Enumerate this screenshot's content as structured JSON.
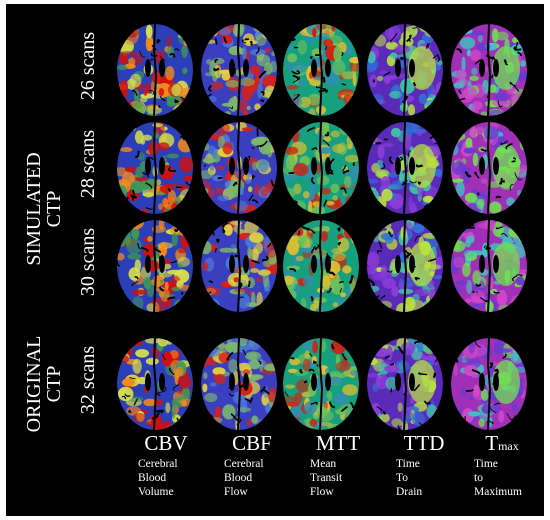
{
  "groups": {
    "simulated": {
      "line1": "SIMULATED",
      "line2": "CTP"
    },
    "original": {
      "line1": "ORIGINAL",
      "line2": "CTP"
    }
  },
  "rows": [
    {
      "label": "26 scans"
    },
    {
      "label": "28 scans"
    },
    {
      "label": "30 scans"
    },
    {
      "label": "32 scans"
    }
  ],
  "columns": [
    {
      "abbr": "CBV",
      "sub": "",
      "desc": [
        "Cerebral",
        "Blood",
        "Volume"
      ],
      "palette": [
        "#2a3fb8",
        "#3f9a52",
        "#d8e04a",
        "#f08a1c",
        "#d01010"
      ]
    },
    {
      "abbr": "CBF",
      "sub": "",
      "desc": [
        "Cerebral",
        "Blood",
        "Flow"
      ],
      "palette": [
        "#3a3fc0",
        "#4a78d8",
        "#7ab86a",
        "#e0d040",
        "#d82018"
      ]
    },
    {
      "abbr": "MTT",
      "sub": "",
      "desc": [
        "Mean",
        "Transit",
        "Flow"
      ],
      "palette": [
        "#17a07e",
        "#2f8fb0",
        "#6ec05a",
        "#e0c030",
        "#d02010"
      ]
    },
    {
      "abbr": "TTD",
      "sub": "",
      "desc": [
        "Time",
        "To",
        "Drain"
      ],
      "palette": [
        "#5a2ab8",
        "#8a3cd8",
        "#3070d8",
        "#40c8a8",
        "#b8e040"
      ]
    },
    {
      "abbr": "T",
      "sub": "max",
      "desc": [
        "Time",
        "to",
        "Maximum"
      ],
      "palette": [
        "#a030b8",
        "#d048c8",
        "#6a3ad0",
        "#40c0c0",
        "#70e050"
      ]
    }
  ]
}
